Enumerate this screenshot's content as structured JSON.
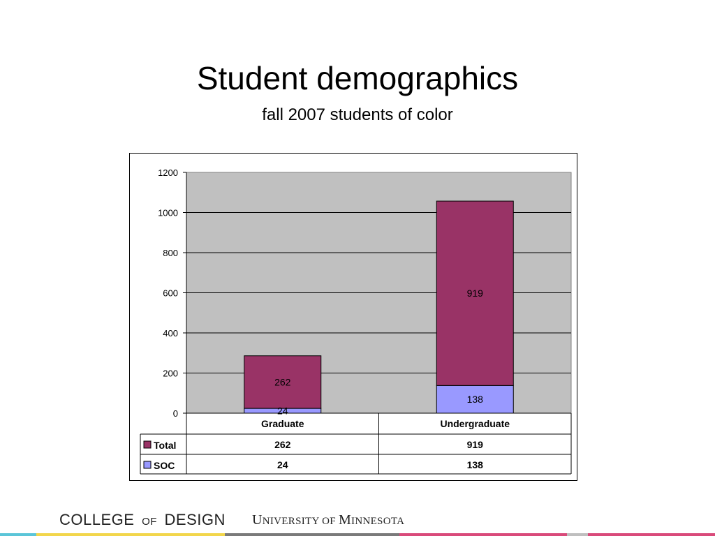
{
  "slide": {
    "title": "Student demographics",
    "subtitle": "fall 2007 students of color"
  },
  "footer": {
    "college_word1": "COLLEGE",
    "college_of": "OF",
    "college_word2": "DESIGN",
    "university_U": "U",
    "university_rest1": "NIVERSITY OF ",
    "university_M": "M",
    "university_rest2": "INNESOTA"
  },
  "colors": {
    "total": "#993366",
    "soc": "#9999FF",
    "plot_bg": "#C0C0C0",
    "stripe": [
      "#5bc5d8",
      "#f2d64b",
      "#7a7a7a",
      "#d94a7a",
      "#bfbfbf",
      "#d94a7a"
    ]
  },
  "chart_data": {
    "type": "bar",
    "stacked": true,
    "categories": [
      "Graduate",
      "Undergraduate"
    ],
    "series": [
      {
        "name": "SOC",
        "values": [
          24,
          138
        ]
      },
      {
        "name": "Total",
        "values": [
          262,
          919
        ]
      }
    ],
    "ylim": [
      0,
      1200
    ],
    "yticks": [
      0,
      200,
      400,
      600,
      800,
      1000,
      1200
    ],
    "grid": true,
    "legend": "data-table"
  }
}
